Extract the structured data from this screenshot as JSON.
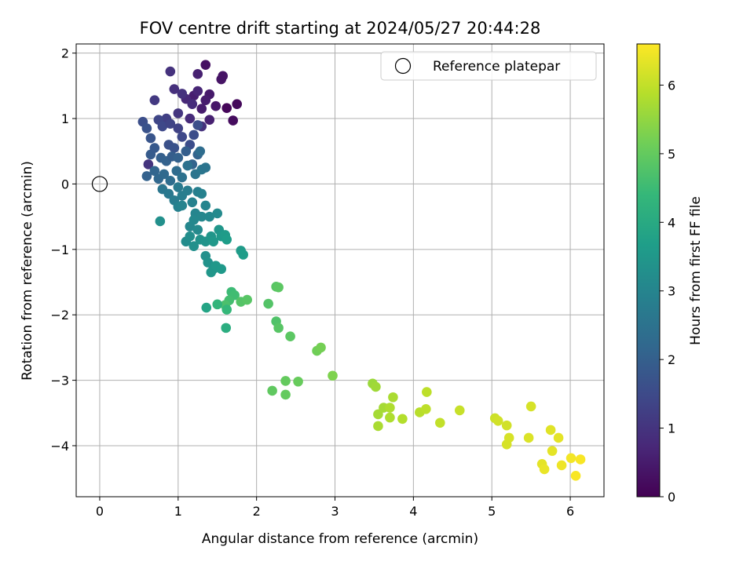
{
  "chart_data": {
    "type": "scatter",
    "title": "FOV centre drift starting at 2024/05/27 20:44:28",
    "xlabel": "Angular distance from reference (arcmin)",
    "ylabel": "Rotation from reference (arcmin)",
    "xlim": [
      -0.3,
      6.43
    ],
    "ylim": [
      -4.78,
      2.14
    ],
    "xticks": [
      0,
      1,
      2,
      3,
      4,
      5,
      6
    ],
    "yticks": [
      -4,
      -3,
      -2,
      -1,
      0,
      1,
      2
    ],
    "grid": true,
    "colormap": "viridis",
    "colorbar": {
      "label": "Hours from first FF file",
      "range": [
        0,
        6.6
      ],
      "ticks": [
        0,
        1,
        2,
        3,
        4,
        5,
        6
      ]
    },
    "legend": {
      "placement": "top-right",
      "entries": [
        {
          "label": "Reference platepar",
          "marker": "open-circle",
          "color": "#000000"
        }
      ]
    },
    "reference_point": {
      "x": 0,
      "y": 0
    },
    "series": [
      {
        "points": [
          [
            1.35,
            1.82,
            0.3
          ],
          [
            1.57,
            1.65,
            0.35
          ],
          [
            1.55,
            1.6,
            0.35
          ],
          [
            1.75,
            1.22,
            0.15
          ],
          [
            1.62,
            1.16,
            0.1
          ],
          [
            1.7,
            0.97,
            0.2
          ],
          [
            1.48,
            1.19,
            0.4
          ],
          [
            1.4,
            1.37,
            0.45
          ],
          [
            1.2,
            1.35,
            0.55
          ],
          [
            1.3,
            1.15,
            0.5
          ],
          [
            1.4,
            0.98,
            0.6
          ],
          [
            1.25,
            1.42,
            0.7
          ],
          [
            1.15,
            1.0,
            0.8
          ],
          [
            1.35,
            1.28,
            0.5
          ],
          [
            1.1,
            1.3,
            0.75
          ],
          [
            0.9,
            1.72,
            0.95
          ],
          [
            0.95,
            1.45,
            0.9
          ],
          [
            1.25,
            1.68,
            0.6
          ],
          [
            0.7,
            1.28,
            1.1
          ],
          [
            0.85,
            1.0,
            1.25
          ],
          [
            1.0,
            1.08,
            1.05
          ],
          [
            1.05,
            1.38,
            0.95
          ],
          [
            1.18,
            1.22,
            0.85
          ],
          [
            1.3,
            0.88,
            0.95
          ],
          [
            0.55,
            0.95,
            1.6
          ],
          [
            0.6,
            0.85,
            1.7
          ],
          [
            0.65,
            0.7,
            1.75
          ],
          [
            0.75,
            0.98,
            1.4
          ],
          [
            0.8,
            0.88,
            1.45
          ],
          [
            0.9,
            0.92,
            1.35
          ],
          [
            1.0,
            0.85,
            1.3
          ],
          [
            0.88,
            0.6,
            1.65
          ],
          [
            0.95,
            0.55,
            1.7
          ],
          [
            1.05,
            0.72,
            1.45
          ],
          [
            1.15,
            0.6,
            1.55
          ],
          [
            1.2,
            0.75,
            1.55
          ],
          [
            1.25,
            0.9,
            1.6
          ],
          [
            0.65,
            0.45,
            1.9
          ],
          [
            0.7,
            0.55,
            1.85
          ],
          [
            0.78,
            0.4,
            2.0
          ],
          [
            0.85,
            0.35,
            2.05
          ],
          [
            0.92,
            0.42,
            1.95
          ],
          [
            1.0,
            0.4,
            2.05
          ],
          [
            1.1,
            0.5,
            1.95
          ],
          [
            1.18,
            0.3,
            2.1
          ],
          [
            1.25,
            0.45,
            2.1
          ],
          [
            0.62,
            0.3,
            1.0
          ],
          [
            0.6,
            0.12,
            2.05
          ],
          [
            0.7,
            0.2,
            2.15
          ],
          [
            0.75,
            0.08,
            2.2
          ],
          [
            0.82,
            0.15,
            2.25
          ],
          [
            0.9,
            0.05,
            2.35
          ],
          [
            0.98,
            0.2,
            2.3
          ],
          [
            1.05,
            0.1,
            2.45
          ],
          [
            1.12,
            0.28,
            2.45
          ],
          [
            1.22,
            0.15,
            2.55
          ],
          [
            1.3,
            0.22,
            2.6
          ],
          [
            1.35,
            0.25,
            2.55
          ],
          [
            1.28,
            0.5,
            2.35
          ],
          [
            0.8,
            -0.08,
            2.6
          ],
          [
            0.88,
            -0.15,
            2.65
          ],
          [
            0.95,
            -0.25,
            2.75
          ],
          [
            1.0,
            -0.05,
            2.7
          ],
          [
            1.05,
            -0.18,
            2.8
          ],
          [
            1.12,
            -0.1,
            2.8
          ],
          [
            1.18,
            -0.28,
            2.9
          ],
          [
            1.25,
            -0.12,
            2.85
          ],
          [
            1.3,
            -0.15,
            2.9
          ],
          [
            1.0,
            -0.35,
            2.9
          ],
          [
            1.05,
            -0.33,
            2.95
          ],
          [
            1.35,
            -0.33,
            3.0
          ],
          [
            1.22,
            -0.45,
            3.0
          ],
          [
            1.3,
            -0.5,
            3.05
          ],
          [
            1.4,
            -0.5,
            3.1
          ],
          [
            1.5,
            -0.45,
            3.15
          ],
          [
            1.15,
            -0.65,
            3.05
          ],
          [
            1.2,
            -0.55,
            3.1
          ],
          [
            1.25,
            -0.7,
            3.15
          ],
          [
            0.77,
            -0.57,
            3.3
          ],
          [
            1.1,
            -0.88,
            3.2
          ],
          [
            1.15,
            -0.8,
            3.25
          ],
          [
            1.2,
            -0.95,
            3.3
          ],
          [
            1.28,
            -0.85,
            3.35
          ],
          [
            1.35,
            -0.88,
            3.4
          ],
          [
            1.42,
            -0.8,
            3.45
          ],
          [
            1.45,
            -0.88,
            3.5
          ],
          [
            1.52,
            -0.7,
            3.45
          ],
          [
            1.55,
            -0.8,
            3.55
          ],
          [
            1.6,
            -0.78,
            3.6
          ],
          [
            1.62,
            -0.85,
            3.65
          ],
          [
            1.35,
            -1.1,
            3.3
          ],
          [
            1.38,
            -1.2,
            3.35
          ],
          [
            1.45,
            -1.3,
            3.4
          ],
          [
            1.42,
            -1.35,
            3.45
          ],
          [
            1.48,
            -1.25,
            3.5
          ],
          [
            1.55,
            -1.3,
            3.55
          ],
          [
            1.8,
            -1.02,
            3.6
          ],
          [
            1.83,
            -1.08,
            3.65
          ],
          [
            1.68,
            -1.65,
            4.5
          ],
          [
            1.72,
            -1.7,
            4.55
          ],
          [
            1.65,
            -1.78,
            4.6
          ],
          [
            1.6,
            -1.85,
            4.7
          ],
          [
            1.62,
            -1.92,
            4.4
          ],
          [
            1.5,
            -1.84,
            4.3
          ],
          [
            1.36,
            -1.89,
            3.85
          ],
          [
            1.8,
            -1.8,
            4.8
          ],
          [
            1.88,
            -1.77,
            4.85
          ],
          [
            1.61,
            -2.2,
            4.1
          ],
          [
            2.15,
            -1.83,
            4.8
          ],
          [
            2.25,
            -1.57,
            4.85
          ],
          [
            2.28,
            -1.58,
            4.9
          ],
          [
            2.25,
            -2.1,
            4.75
          ],
          [
            2.28,
            -2.2,
            4.85
          ],
          [
            2.43,
            -2.33,
            4.9
          ],
          [
            2.2,
            -3.16,
            4.95
          ],
          [
            2.37,
            -3.01,
            5.0
          ],
          [
            2.37,
            -3.22,
            5.0
          ],
          [
            2.53,
            -3.02,
            5.05
          ],
          [
            2.77,
            -2.55,
            5.15
          ],
          [
            2.82,
            -2.5,
            5.2
          ],
          [
            2.97,
            -2.93,
            5.3
          ],
          [
            3.48,
            -3.05,
            5.6
          ],
          [
            3.52,
            -3.1,
            5.65
          ],
          [
            3.55,
            -3.52,
            5.7
          ],
          [
            3.62,
            -3.42,
            5.7
          ],
          [
            3.55,
            -3.7,
            5.75
          ],
          [
            3.7,
            -3.42,
            5.8
          ],
          [
            3.7,
            -3.57,
            5.8
          ],
          [
            3.74,
            -3.26,
            5.75
          ],
          [
            3.86,
            -3.59,
            5.85
          ],
          [
            4.08,
            -3.49,
            5.9
          ],
          [
            4.16,
            -3.44,
            5.95
          ],
          [
            4.17,
            -3.18,
            5.95
          ],
          [
            4.34,
            -3.65,
            6.0
          ],
          [
            4.59,
            -3.46,
            6.05
          ],
          [
            5.04,
            -3.58,
            6.1
          ],
          [
            5.08,
            -3.62,
            6.15
          ],
          [
            5.19,
            -3.69,
            6.15
          ],
          [
            5.19,
            -3.98,
            6.2
          ],
          [
            5.22,
            -3.88,
            6.2
          ],
          [
            5.47,
            -3.88,
            6.25
          ],
          [
            5.5,
            -3.4,
            6.2
          ],
          [
            5.64,
            -4.28,
            6.35
          ],
          [
            5.67,
            -4.36,
            6.4
          ],
          [
            5.77,
            -4.08,
            6.35
          ],
          [
            5.75,
            -3.76,
            6.3
          ],
          [
            5.85,
            -3.88,
            6.35
          ],
          [
            5.89,
            -4.3,
            6.45
          ],
          [
            6.01,
            -4.19,
            6.5
          ],
          [
            6.07,
            -4.46,
            6.55
          ],
          [
            6.13,
            -4.21,
            6.55
          ]
        ]
      }
    ]
  }
}
